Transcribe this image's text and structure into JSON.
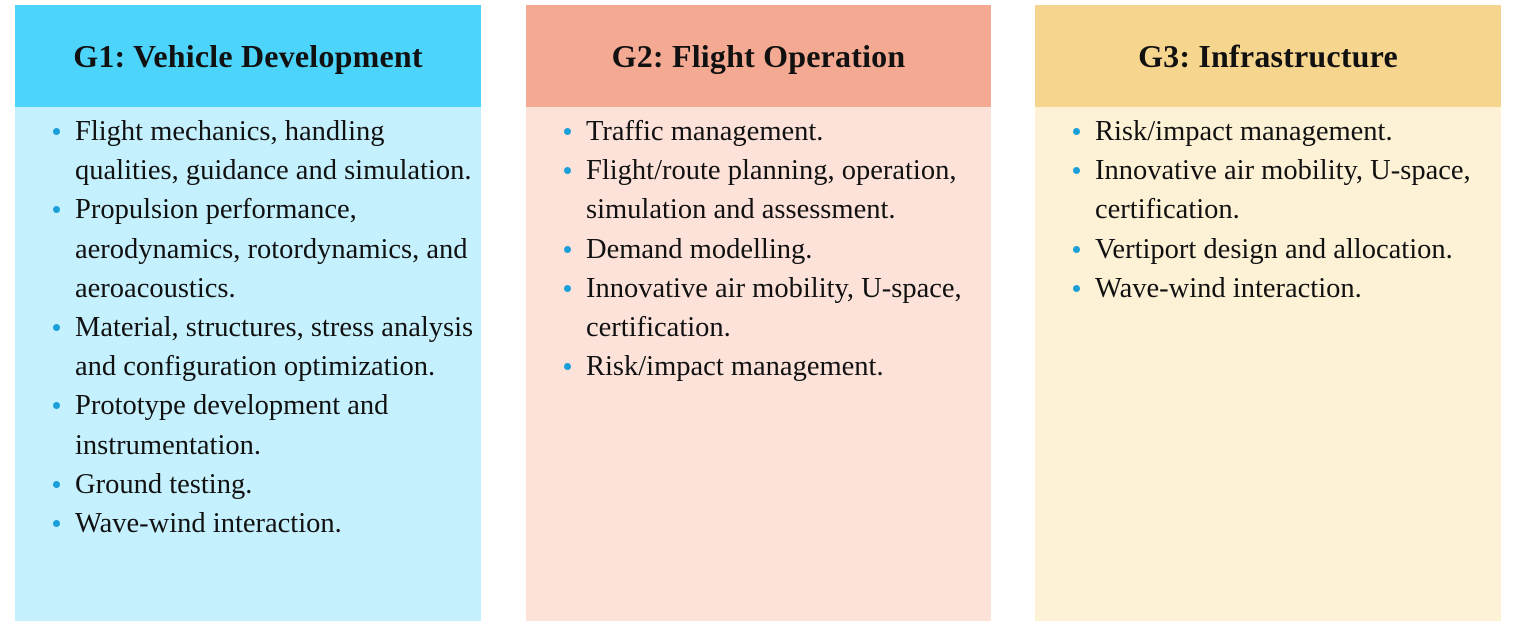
{
  "columns": [
    {
      "id": "g1",
      "title": "G1: Vehicle Development",
      "header_color": "#4dd4fa",
      "body_color": "#c5f0fd",
      "bullet_color": "#1a9fd8",
      "items": [
        "Flight mechanics, handling qualities, guidance and simulation.",
        "Propulsion performance, aerodynamics, rotordynamics, and aeroacoustics.",
        "Material, structures, stress analysis and configuration optimization.",
        "Prototype development and instrumentation.",
        "Ground testing.",
        "Wave-wind interaction."
      ]
    },
    {
      "id": "g2",
      "title": "G2: Flight Operation",
      "header_color": "#f3a992",
      "body_color": "#fce2d9",
      "bullet_color": "#1a9fd8",
      "items": [
        "Traffic management.",
        "Flight/route planning, operation, simulation and assessment.",
        "Demand modelling.",
        "Innovative air mobility, U-space, certification.",
        "Risk/impact management."
      ]
    },
    {
      "id": "g3",
      "title": "G3: Infrastructure",
      "header_color": "#f6d68e",
      "body_color": "#fdf1d6",
      "bullet_color": "#1a9fd8",
      "items": [
        "Risk/impact management.",
        "Innovative air mobility, U-space, certification.",
        "Vertiport design and allocation.",
        "Wave-wind interaction."
      ]
    }
  ]
}
